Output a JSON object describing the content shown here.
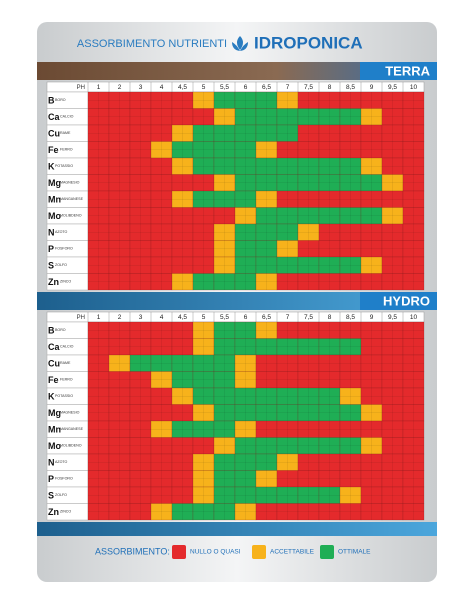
{
  "header": {
    "title": "ASSORBIMENTO NUTRIENTI",
    "brand": "IDROPONICA"
  },
  "ph_label": "PH",
  "ph_columns": [
    "1",
    "2",
    "3",
    "4",
    "4,5",
    "5",
    "5,5",
    "6",
    "6,5",
    "7",
    "7,5",
    "8",
    "8,5",
    "9",
    "9,5",
    "10"
  ],
  "elements": [
    {
      "symbol": "B",
      "name": "BORO"
    },
    {
      "symbol": "Ca",
      "name": "CALCIO"
    },
    {
      "symbol": "Cu",
      "name": "RAME"
    },
    {
      "symbol": "Fe",
      "name": "FERRO"
    },
    {
      "symbol": "K",
      "name": "POTASSIO"
    },
    {
      "symbol": "Mg",
      "name": "MAGNESIO"
    },
    {
      "symbol": "Mn",
      "name": "MANGANESE"
    },
    {
      "symbol": "Mo",
      "name": "MOLIBDENO"
    },
    {
      "symbol": "N",
      "name": "AZOTO"
    },
    {
      "symbol": "P",
      "name": "FOSFORO"
    },
    {
      "symbol": "S",
      "name": "ZOLFO"
    },
    {
      "symbol": "Zn",
      "name": "ZINCO"
    }
  ],
  "tables": [
    {
      "title": "TERRA",
      "levels": [
        [
          0,
          0,
          0,
          0,
          0,
          1,
          2,
          2,
          2,
          1,
          0,
          0,
          0,
          0,
          0,
          0
        ],
        [
          0,
          0,
          0,
          0,
          0,
          0,
          1,
          2,
          2,
          2,
          2,
          2,
          2,
          1,
          0,
          0
        ],
        [
          0,
          0,
          0,
          0,
          1,
          2,
          2,
          2,
          2,
          2,
          0,
          0,
          0,
          0,
          0,
          0
        ],
        [
          0,
          0,
          0,
          1,
          2,
          2,
          2,
          2,
          1,
          0,
          0,
          0,
          0,
          0,
          0,
          0
        ],
        [
          0,
          0,
          0,
          0,
          1,
          2,
          2,
          2,
          2,
          2,
          2,
          2,
          2,
          1,
          0,
          0
        ],
        [
          0,
          0,
          0,
          0,
          0,
          0,
          1,
          2,
          2,
          2,
          2,
          2,
          2,
          2,
          1,
          0
        ],
        [
          0,
          0,
          0,
          0,
          1,
          2,
          2,
          2,
          1,
          0,
          0,
          0,
          0,
          0,
          0,
          0
        ],
        [
          0,
          0,
          0,
          0,
          0,
          0,
          0,
          1,
          2,
          2,
          2,
          2,
          2,
          2,
          1,
          0
        ],
        [
          0,
          0,
          0,
          0,
          0,
          0,
          1,
          2,
          2,
          2,
          1,
          0,
          0,
          0,
          0,
          0
        ],
        [
          0,
          0,
          0,
          0,
          0,
          0,
          1,
          2,
          2,
          1,
          0,
          0,
          0,
          0,
          0,
          0
        ],
        [
          0,
          0,
          0,
          0,
          0,
          0,
          1,
          2,
          2,
          2,
          2,
          2,
          2,
          1,
          0,
          0
        ],
        [
          0,
          0,
          0,
          0,
          1,
          2,
          2,
          2,
          1,
          0,
          0,
          0,
          0,
          0,
          0,
          0
        ]
      ]
    },
    {
      "title": "HYDRO",
      "levels": [
        [
          0,
          0,
          0,
          0,
          0,
          1,
          2,
          2,
          1,
          0,
          0,
          0,
          0,
          0,
          0,
          0
        ],
        [
          0,
          0,
          0,
          0,
          0,
          1,
          2,
          2,
          2,
          2,
          2,
          2,
          2,
          0,
          0,
          0
        ],
        [
          0,
          1,
          2,
          2,
          2,
          2,
          2,
          1,
          0,
          0,
          0,
          0,
          0,
          0,
          0,
          0
        ],
        [
          0,
          0,
          0,
          1,
          2,
          2,
          2,
          1,
          0,
          0,
          0,
          0,
          0,
          0,
          0,
          0
        ],
        [
          0,
          0,
          0,
          0,
          1,
          2,
          2,
          2,
          2,
          2,
          2,
          2,
          1,
          0,
          0,
          0
        ],
        [
          0,
          0,
          0,
          0,
          0,
          1,
          2,
          2,
          2,
          2,
          2,
          2,
          2,
          1,
          0,
          0
        ],
        [
          0,
          0,
          0,
          1,
          2,
          2,
          2,
          1,
          0,
          0,
          0,
          0,
          0,
          0,
          0,
          0
        ],
        [
          0,
          0,
          0,
          0,
          0,
          0,
          1,
          2,
          2,
          2,
          2,
          2,
          2,
          1,
          0,
          0
        ],
        [
          0,
          0,
          0,
          0,
          0,
          1,
          2,
          2,
          2,
          1,
          0,
          0,
          0,
          0,
          0,
          0
        ],
        [
          0,
          0,
          0,
          0,
          0,
          1,
          2,
          2,
          1,
          0,
          0,
          0,
          0,
          0,
          0,
          0
        ],
        [
          0,
          0,
          0,
          0,
          0,
          1,
          2,
          2,
          2,
          2,
          2,
          2,
          1,
          0,
          0,
          0
        ],
        [
          0,
          0,
          0,
          1,
          2,
          2,
          2,
          1,
          0,
          0,
          0,
          0,
          0,
          0,
          0,
          0
        ]
      ]
    }
  ],
  "legend": {
    "title": "ASSORBIMENTO:",
    "items": [
      {
        "label": "NULLO O QUASI",
        "color": "#e42a2c"
      },
      {
        "label": "ACCETTABILE",
        "color": "#f7b21b"
      },
      {
        "label": "OTTIMALE",
        "color": "#1fae55"
      }
    ]
  }
}
